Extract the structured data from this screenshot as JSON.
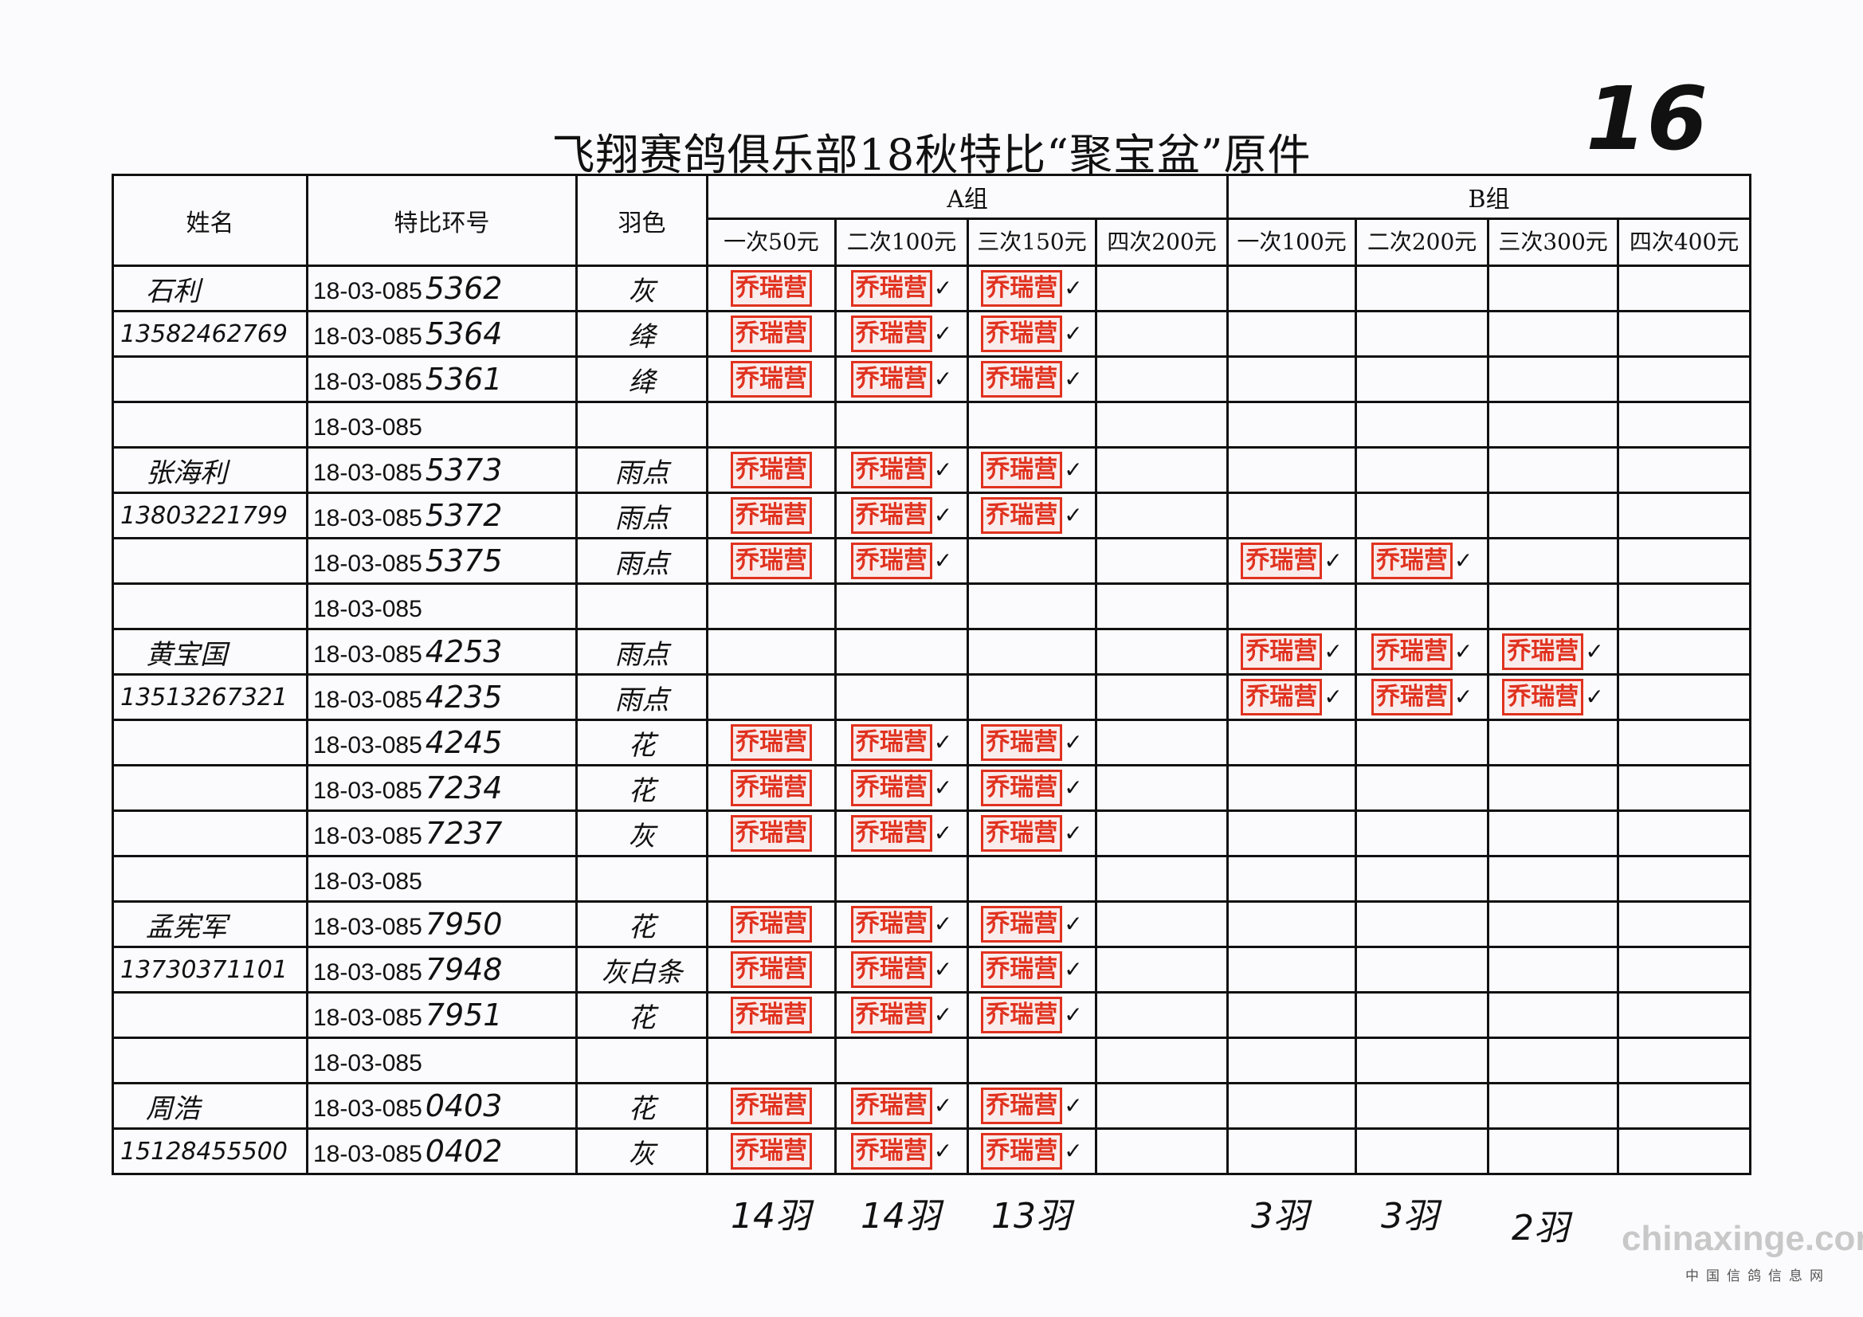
{
  "title": "飞翔赛鸽俱乐部18秋特比“聚宝盆”原件",
  "page_number": "16",
  "headers": {
    "name": "姓名",
    "ring": "特比环号",
    "color": "羽色",
    "group_a": "A组",
    "group_b": "B组",
    "a_cols": [
      "一次50元",
      "二次100元",
      "三次150元",
      "四次200元"
    ],
    "b_cols": [
      "一次100元",
      "二次200元",
      "三次300元",
      "四次400元"
    ]
  },
  "stamp_text": "乔瑞营",
  "stamp_color": "#e0321f",
  "rows": [
    {
      "name": "石利",
      "ring_prefix": "18-03-085",
      "ring_suffix": "5362",
      "color": "灰",
      "stamps": [
        0,
        1,
        2
      ]
    },
    {
      "name": "13582462769",
      "ring_prefix": "18-03-085",
      "ring_suffix": "5364",
      "color": "绛",
      "stamps": [
        0,
        1,
        2
      ]
    },
    {
      "name": "",
      "ring_prefix": "18-03-085",
      "ring_suffix": "5361",
      "color": "绛",
      "stamps": [
        0,
        1,
        2
      ]
    },
    {
      "name": "",
      "ring_prefix": "18-03-085",
      "ring_suffix": "",
      "color": "",
      "stamps": []
    },
    {
      "name": "张海利",
      "ring_prefix": "18-03-085",
      "ring_suffix": "5373",
      "color": "雨点",
      "stamps": [
        0,
        1,
        2
      ]
    },
    {
      "name": "13803221799",
      "ring_prefix": "18-03-085",
      "ring_suffix": "5372",
      "color": "雨点",
      "stamps": [
        0,
        1,
        2
      ]
    },
    {
      "name": "",
      "ring_prefix": "18-03-085",
      "ring_suffix": "5375",
      "color": "雨点",
      "stamps": [
        0,
        1,
        4,
        5
      ]
    },
    {
      "name": "",
      "ring_prefix": "18-03-085",
      "ring_suffix": "",
      "color": "",
      "stamps": []
    },
    {
      "name": "黄宝国",
      "ring_prefix": "18-03-085",
      "ring_suffix": "4253",
      "color": "雨点",
      "stamps": [
        4,
        5,
        6
      ]
    },
    {
      "name": "13513267321",
      "ring_prefix": "18-03-085",
      "ring_suffix": "4235",
      "color": "雨点",
      "stamps": [
        4,
        5,
        6
      ]
    },
    {
      "name": "",
      "ring_prefix": "18-03-085",
      "ring_suffix": "4245",
      "color": "花",
      "stamps": [
        0,
        1,
        2
      ]
    },
    {
      "name": "",
      "ring_prefix": "18-03-085",
      "ring_suffix": "7234",
      "color": "花",
      "stamps": [
        0,
        1,
        2
      ]
    },
    {
      "name": "",
      "ring_prefix": "18-03-085",
      "ring_suffix": "7237",
      "color": "灰",
      "stamps": [
        0,
        1,
        2
      ]
    },
    {
      "name": "",
      "ring_prefix": "18-03-085",
      "ring_suffix": "",
      "color": "",
      "stamps": []
    },
    {
      "name": "孟宪军",
      "ring_prefix": "18-03-085",
      "ring_suffix": "7950",
      "color": "花",
      "stamps": [
        0,
        1,
        2
      ]
    },
    {
      "name": "13730371101",
      "ring_prefix": "18-03-085",
      "ring_suffix": "7948",
      "color": "灰白条",
      "stamps": [
        0,
        1,
        2
      ]
    },
    {
      "name": "",
      "ring_prefix": "18-03-085",
      "ring_suffix": "7951",
      "color": "花",
      "stamps": [
        0,
        1,
        2
      ]
    },
    {
      "name": "",
      "ring_prefix": "18-03-085",
      "ring_suffix": "",
      "color": "",
      "stamps": []
    },
    {
      "name": "周浩",
      "ring_prefix": "18-03-085",
      "ring_suffix": "0403",
      "color": "花",
      "stamps": [
        0,
        1,
        2
      ]
    },
    {
      "name": "15128455500",
      "ring_prefix": "18-03-085",
      "ring_suffix": "0402",
      "color": "灰",
      "stamps": [
        0,
        1,
        2
      ]
    }
  ],
  "totals": [
    "14羽",
    "14羽",
    "13羽",
    "",
    "3羽",
    "3羽",
    "2羽",
    ""
  ],
  "watermark": {
    "site": "chinaxinge.com",
    "subtitle": "中国信鸽信息网"
  }
}
